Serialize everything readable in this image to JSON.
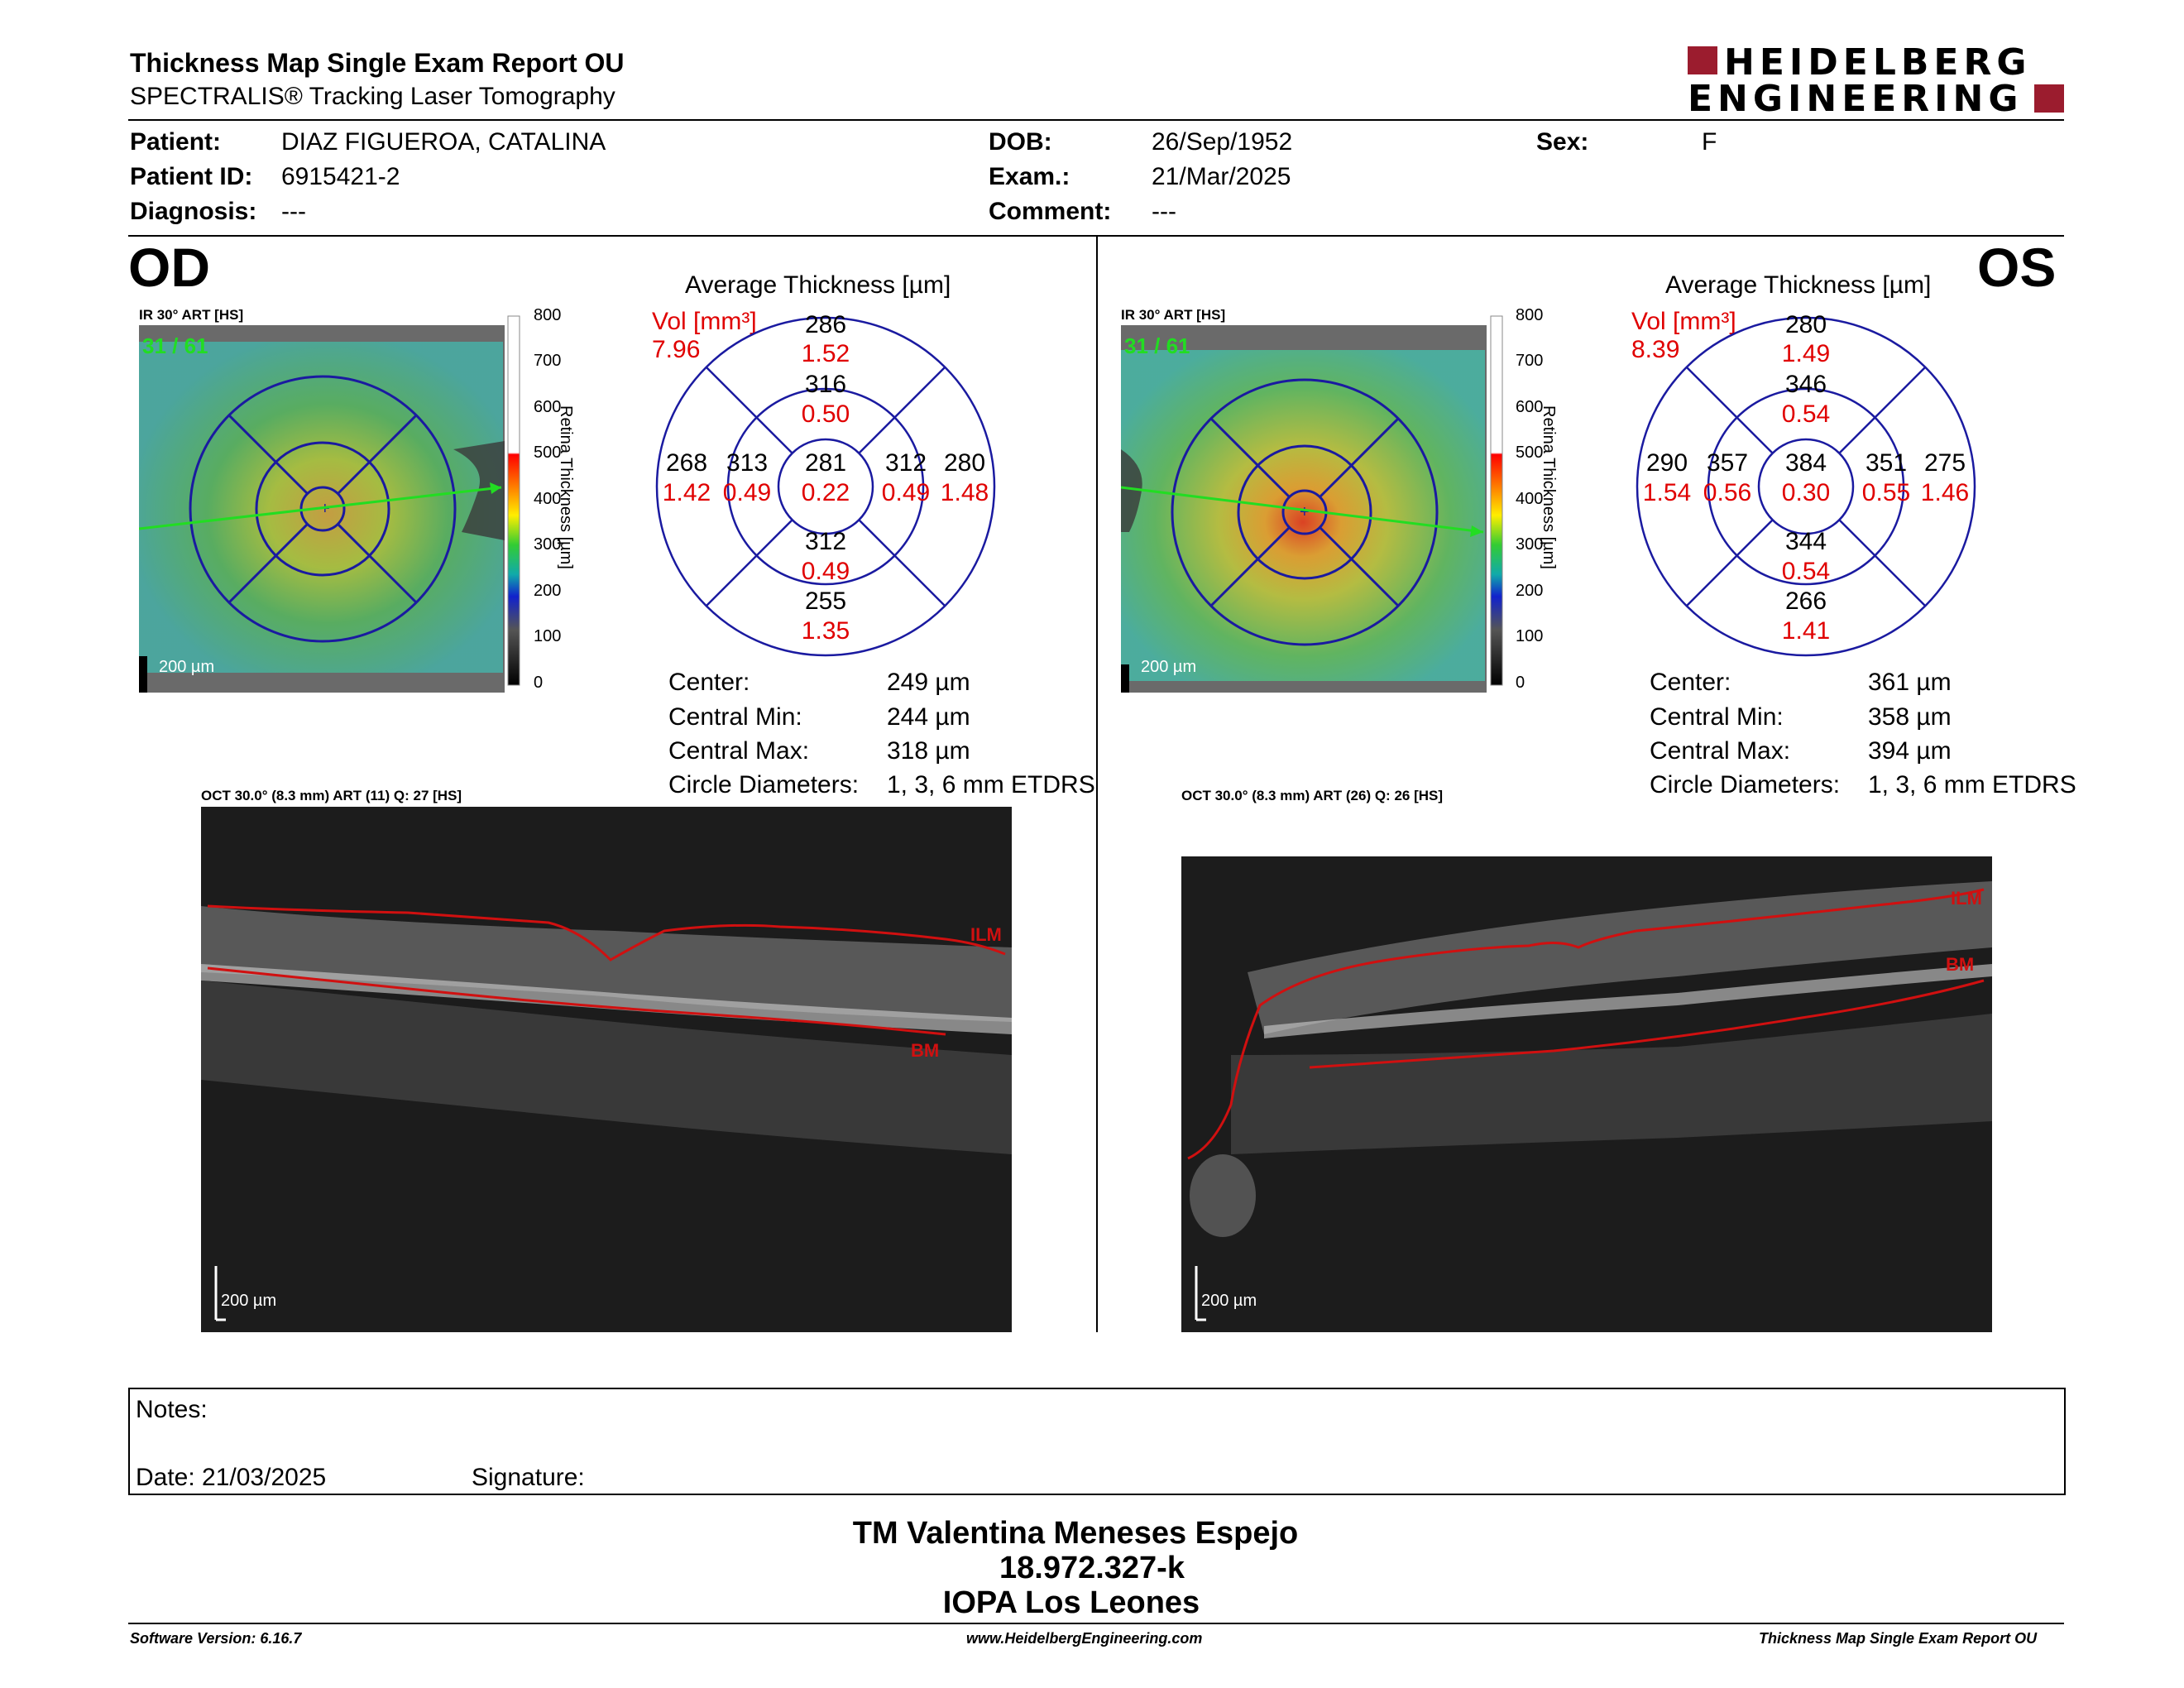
{
  "header": {
    "title": "Thickness Map Single Exam Report OU",
    "subtitle": "SPECTRALIS® Tracking Laser Tomography",
    "logo_line1": "HEIDELBERG",
    "logo_line2": "ENGINEERING"
  },
  "patient": {
    "patient_label": "Patient:",
    "patient_value": "DIAZ FIGUEROA, CATALINA",
    "id_label": "Patient ID:",
    "id_value": "6915421-2",
    "diagnosis_label": "Diagnosis:",
    "diagnosis_value": "---",
    "dob_label": "DOB:",
    "dob_value": "26/Sep/1952",
    "exam_label": "Exam.:",
    "exam_value": "21/Mar/2025",
    "comment_label": "Comment:",
    "comment_value": "---",
    "sex_label": "Sex:",
    "sex_value": "F"
  },
  "colorbar": {
    "ticks": [
      "800",
      "700",
      "600",
      "500",
      "400",
      "300",
      "200",
      "100",
      "0"
    ],
    "label": "Retina Thickness [µm]"
  },
  "od": {
    "eye": "OD",
    "ir_label": "IR 30° ART [HS]",
    "frame": "31 / 61",
    "scale": "200 µm",
    "avg_title": "Average Thickness [µm]",
    "vol_label": "Vol [mm³]",
    "vol_value": "7.96",
    "etdrs": {
      "outer_top": "286",
      "outer_top_vol": "1.52",
      "inner_top": "316",
      "inner_top_vol": "0.50",
      "outer_left": "268",
      "outer_left_vol": "1.42",
      "inner_left": "313",
      "inner_left_vol": "0.49",
      "center": "281",
      "center_vol": "0.22",
      "inner_right": "312",
      "inner_right_vol": "0.49",
      "outer_right": "280",
      "outer_right_vol": "1.48",
      "inner_bottom": "312",
      "inner_bottom_vol": "0.49",
      "outer_bottom": "255",
      "outer_bottom_vol": "1.35"
    },
    "stats": {
      "center_label": "Center:",
      "center_value": "249 µm",
      "min_label": "Central Min:",
      "min_value": "244 µm",
      "max_label": "Central Max:",
      "max_value": "318 µm",
      "diam_label": "Circle Diameters:",
      "diam_value": "1, 3, 6 mm ETDRS"
    },
    "oct_label": "OCT 30.0° (8.3 mm) ART (11) Q: 27 [HS]",
    "ilm": "ILM",
    "bm": "BM",
    "oct_scale": "200 µm"
  },
  "os": {
    "eye": "OS",
    "ir_label": "IR 30° ART [HS]",
    "frame": "31 / 61",
    "scale": "200 µm",
    "avg_title": "Average Thickness [µm]",
    "vol_label": "Vol [mm³]",
    "vol_value": "8.39",
    "etdrs": {
      "outer_top": "280",
      "outer_top_vol": "1.49",
      "inner_top": "346",
      "inner_top_vol": "0.54",
      "outer_left": "290",
      "outer_left_vol": "1.54",
      "inner_left": "357",
      "inner_left_vol": "0.56",
      "center": "384",
      "center_vol": "0.30",
      "inner_right": "351",
      "inner_right_vol": "0.55",
      "outer_right": "275",
      "outer_right_vol": "1.46",
      "inner_bottom": "344",
      "inner_bottom_vol": "0.54",
      "outer_bottom": "266",
      "outer_bottom_vol": "1.41"
    },
    "stats": {
      "center_label": "Center:",
      "center_value": "361 µm",
      "min_label": "Central Min:",
      "min_value": "358 µm",
      "max_label": "Central Max:",
      "max_value": "394 µm",
      "diam_label": "Circle Diameters:",
      "diam_value": "1, 3, 6 mm ETDRS"
    },
    "oct_label": "OCT 30.0° (8.3 mm) ART (26) Q: 26 [HS]",
    "ilm": "ILM",
    "bm": "BM",
    "oct_scale": "200 µm"
  },
  "notes": {
    "notes_label": "Notes:",
    "date_label": "Date: 21/03/2025",
    "signature_label": "Signature:"
  },
  "signature_block": {
    "line1": "TM Valentina Meneses Espejo",
    "line2": "18.972.327-k",
    "line3": "IOPA Los Leones"
  },
  "footer": {
    "left": "Software Version: 6.16.7",
    "center": "www.HeidelbergEngineering.com",
    "right": "Thickness Map Single Exam Report OU"
  },
  "colors": {
    "etdrs_grid": "#1a1aa0",
    "volume_red": "#e00000",
    "logo_red": "#9b1c2e",
    "layer_line": "#d01010"
  }
}
